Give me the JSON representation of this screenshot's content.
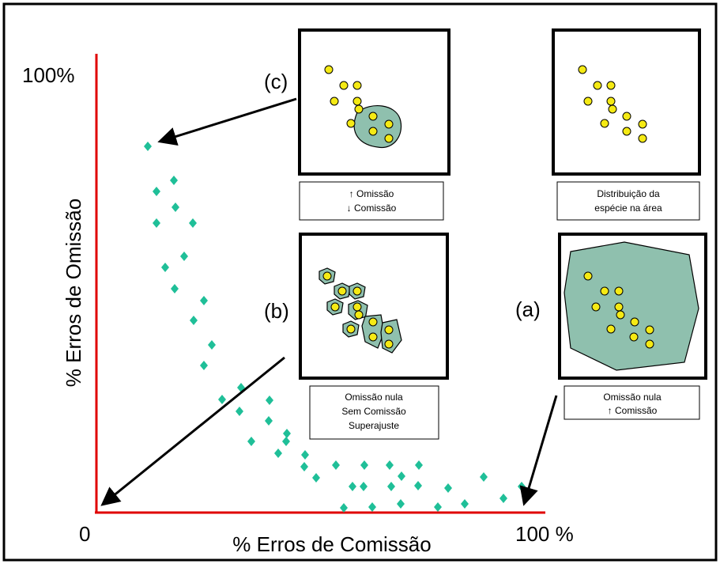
{
  "axes": {
    "y_top_label": "100%",
    "origin_label": "0",
    "x_right_label": "100 %",
    "x_title": "% Erros de Comissão",
    "y_title": "% Erros de Omissão"
  },
  "panels": [
    {
      "tag": "(c)",
      "caption": [
        "↑ Omissão",
        "↓ Comissão"
      ]
    },
    {
      "caption": [
        "Distribuição da",
        "espécie na área"
      ]
    },
    {
      "tag": "(b)",
      "caption": [
        "Omissão nula",
        "Sem Comissão",
        "Superajuste"
      ]
    },
    {
      "tag": "(a)",
      "caption": [
        "Omissão nula",
        "↑ Comissão"
      ]
    }
  ]
}
